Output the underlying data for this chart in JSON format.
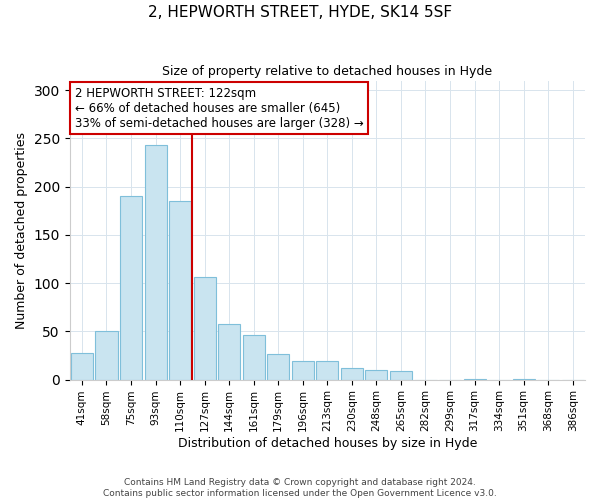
{
  "title": "2, HEPWORTH STREET, HYDE, SK14 5SF",
  "subtitle": "Size of property relative to detached houses in Hyde",
  "xlabel": "Distribution of detached houses by size in Hyde",
  "ylabel": "Number of detached properties",
  "bar_labels": [
    "41sqm",
    "58sqm",
    "75sqm",
    "93sqm",
    "110sqm",
    "127sqm",
    "144sqm",
    "161sqm",
    "179sqm",
    "196sqm",
    "213sqm",
    "230sqm",
    "248sqm",
    "265sqm",
    "282sqm",
    "299sqm",
    "317sqm",
    "334sqm",
    "351sqm",
    "368sqm",
    "386sqm"
  ],
  "bar_values": [
    28,
    50,
    190,
    243,
    185,
    106,
    58,
    46,
    27,
    19,
    19,
    12,
    10,
    9,
    0,
    0,
    1,
    0,
    1,
    0,
    0
  ],
  "bar_color": "#c9e4f0",
  "bar_edge_color": "#7fbfda",
  "reference_line_index": 5,
  "reference_line_color": "#cc0000",
  "annotation_title": "2 HEPWORTH STREET: 122sqm",
  "annotation_line1": "← 66% of detached houses are smaller (645)",
  "annotation_line2": "33% of semi-detached houses are larger (328) →",
  "annotation_box_color": "#ffffff",
  "annotation_box_edge_color": "#cc0000",
  "ylim": [
    0,
    310
  ],
  "footer1": "Contains HM Land Registry data © Crown copyright and database right 2024.",
  "footer2": "Contains public sector information licensed under the Open Government Licence v3.0.",
  "background_color": "#ffffff",
  "grid_color": "#d8e4ed",
  "title_fontsize": 11,
  "subtitle_fontsize": 9,
  "axis_label_fontsize": 9,
  "tick_fontsize": 7.5,
  "annotation_fontsize": 8.5,
  "footer_fontsize": 6.5
}
